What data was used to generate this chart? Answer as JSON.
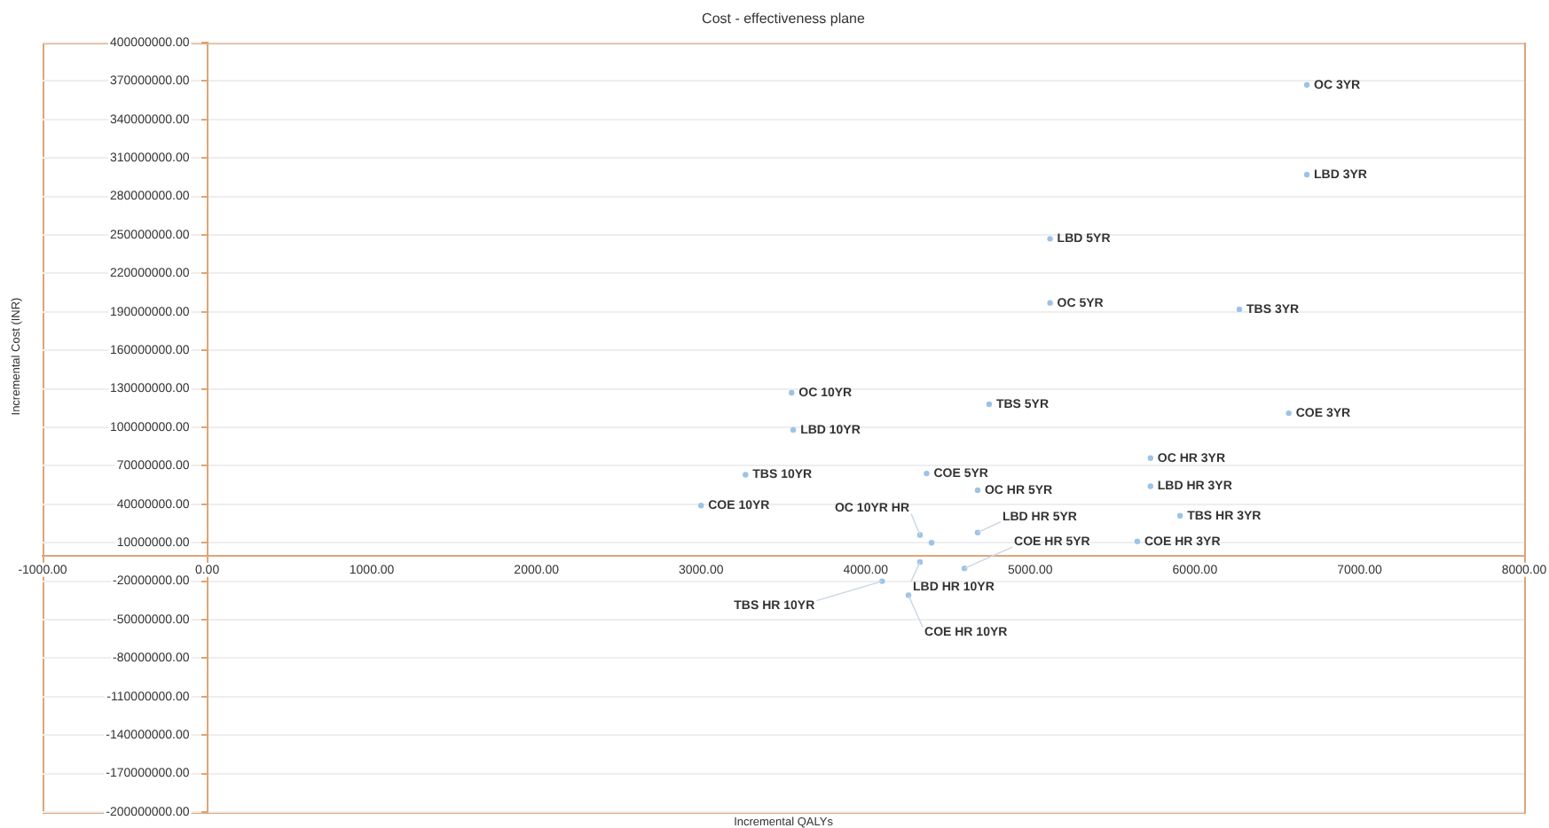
{
  "chart_data": {
    "type": "scatter",
    "title": "Cost - effectiveness plane",
    "xlabel": "Incremental QALYs",
    "ylabel": "Incremental Cost (INR)",
    "x": [
      6680,
      6680,
      5120,
      5120,
      6270,
      3550,
      4750,
      6570,
      3560,
      5730,
      3270,
      4370,
      5730,
      4680,
      3000,
      5910,
      5650,
      4330,
      4680,
      4600,
      4330,
      4100,
      4260,
      4400
    ],
    "series": [
      {
        "color": "#9dc3e6",
        "values": [
          367000000,
          297000000,
          247000000,
          197000000,
          192000000,
          127000000,
          118000000,
          111000000,
          98000000,
          76000000,
          63000000,
          64000000,
          54000000,
          51000000,
          39000000,
          31000000,
          11000000,
          16000000,
          18000000,
          -10000000,
          -5000000,
          -20000000,
          -31000000,
          10000000
        ]
      }
    ],
    "annotations": [
      {
        "text": "OC 3YR",
        "x": 6680,
        "y": 367000000
      },
      {
        "text": "LBD 3YR",
        "x": 6680,
        "y": 297000000
      },
      {
        "text": "LBD 5YR",
        "x": 5120,
        "y": 247000000
      },
      {
        "text": "OC 5YR",
        "x": 5120,
        "y": 197000000
      },
      {
        "text": "TBS 3YR",
        "x": 6270,
        "y": 192000000
      },
      {
        "text": "OC 10YR",
        "x": 3550,
        "y": 127000000
      },
      {
        "text": "TBS 5YR",
        "x": 4750,
        "y": 118000000
      },
      {
        "text": "COE 3YR",
        "x": 6570,
        "y": 111000000
      },
      {
        "text": "LBD 10YR",
        "x": 3560,
        "y": 98000000
      },
      {
        "text": "OC HR 3YR",
        "x": 5730,
        "y": 76000000
      },
      {
        "text": "TBS 10YR",
        "x": 3270,
        "y": 63000000
      },
      {
        "text": "COE 5YR",
        "x": 4370,
        "y": 64000000
      },
      {
        "text": "LBD HR 3YR",
        "x": 5730,
        "y": 54000000
      },
      {
        "text": "OC HR 5YR",
        "x": 4680,
        "y": 51000000
      },
      {
        "text": "COE 10YR",
        "x": 3000,
        "y": 39000000
      },
      {
        "text": "TBS HR 3YR",
        "x": 5910,
        "y": 31000000
      },
      {
        "text": "COE HR 3YR",
        "x": 5650,
        "y": 11000000
      },
      {
        "text": "OC 10YR HR",
        "x": 4330,
        "y": 16000000
      },
      {
        "text": "LBD HR 5YR",
        "x": 4680,
        "y": 18000000
      },
      {
        "text": "COE HR 5YR",
        "x": 4600,
        "y": -10000000
      },
      {
        "text": "LBD HR 10YR",
        "x": 4330,
        "y": -5000000
      },
      {
        "text": "TBS HR 10YR",
        "x": 4100,
        "y": -20000000
      },
      {
        "text": "COE HR 10YR",
        "x": 4260,
        "y": -31000000
      }
    ],
    "xlim": [
      -1000,
      8000
    ],
    "xticks": [
      {
        "value": -1000,
        "label": "-1000.00"
      },
      {
        "value": 0,
        "label": "0.00"
      },
      {
        "value": 1000,
        "label": "1000.00"
      },
      {
        "value": 2000,
        "label": "2000.00"
      },
      {
        "value": 3000,
        "label": "3000.00"
      },
      {
        "value": 4000,
        "label": "4000.00"
      },
      {
        "value": 5000,
        "label": "5000.00"
      },
      {
        "value": 6000,
        "label": "6000.00"
      },
      {
        "value": 7000,
        "label": "7000.00"
      },
      {
        "value": 8000,
        "label": "8000.00"
      }
    ],
    "ylim": [
      -200000000,
      400000000
    ],
    "yticks": [
      {
        "value": -200000000,
        "label": "-200000000.00"
      },
      {
        "value": -170000000,
        "label": "-170000000.00"
      },
      {
        "value": -140000000,
        "label": "-140000000.00"
      },
      {
        "value": -110000000,
        "label": "-110000000.00"
      },
      {
        "value": -80000000,
        "label": "-80000000.00"
      },
      {
        "value": -50000000,
        "label": "-50000000.00"
      },
      {
        "value": -20000000,
        "label": "-20000000.00"
      },
      {
        "value": 10000000,
        "label": "10000000.00"
      },
      {
        "value": 40000000,
        "label": "40000000.00"
      },
      {
        "value": 70000000,
        "label": "70000000.00"
      },
      {
        "value": 100000000,
        "label": "100000000.00"
      },
      {
        "value": 130000000,
        "label": "130000000.00"
      },
      {
        "value": 160000000,
        "label": "160000000.00"
      },
      {
        "value": 190000000,
        "label": "190000000.00"
      },
      {
        "value": 220000000,
        "label": "220000000.00"
      },
      {
        "value": 250000000,
        "label": "250000000.00"
      },
      {
        "value": 280000000,
        "label": "280000000.00"
      },
      {
        "value": 310000000,
        "label": "310000000.00"
      },
      {
        "value": 340000000,
        "label": "340000000.00"
      },
      {
        "value": 370000000,
        "label": "370000000.00"
      },
      {
        "value": 400000000,
        "label": "400000000.00"
      }
    ],
    "grid": "y",
    "legend": false,
    "marker": "circle"
  }
}
